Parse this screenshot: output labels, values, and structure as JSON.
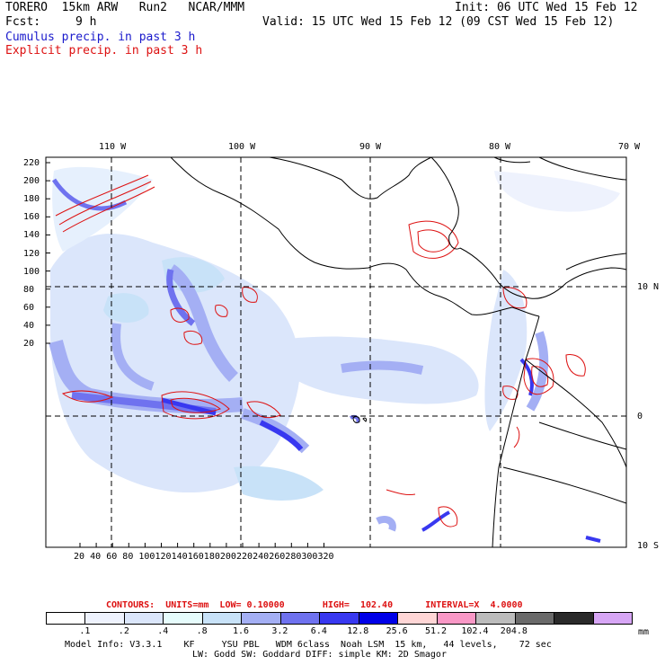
{
  "header": {
    "model_line": "TORERO  15km ARW   Run2   NCAR/MMM",
    "init_line": "Init: 06 UTC Wed 15 Feb 12",
    "fcst_label": "Fcst:",
    "fcst_value": "9 h",
    "valid_line": "Valid: 15 UTC Wed 15 Feb 12 (09 CST Wed 15 Feb 12)",
    "field_cumulus": "Cumulus precip. in past 3 h",
    "field_explicit": "Explicit precip. in past 3 h"
  },
  "map": {
    "lon_labels": [
      "110 W",
      "100 W",
      "90 W",
      "80 W",
      "70 W"
    ],
    "lat_labels": [
      "10 N",
      "0",
      "10 S"
    ],
    "y_ticks": [
      "220",
      "200",
      "180",
      "160",
      "140",
      "120",
      "100",
      "80",
      "60",
      "40",
      "20"
    ],
    "x_ticks": [
      "20",
      "40",
      "60",
      "80",
      "100",
      "120",
      "140",
      "160",
      "180",
      "200",
      "220",
      "240",
      "260",
      "280",
      "300",
      "320"
    ],
    "colors": {
      "explicit_contour": "#dd1111",
      "coast": "#000000"
    }
  },
  "contours_line": {
    "label": "CONTOURS:  UNITS=mm  LOW= 0.10000       HIGH=  102.40      INTERVAL=X  4.0000"
  },
  "colorbar": {
    "tick_labels": [
      ".1",
      ".2",
      ".4",
      ".8",
      "1.6",
      "3.2",
      "6.4",
      "12.8",
      "25.6",
      "51.2",
      "102.4",
      "204.8"
    ],
    "units": "mm",
    "colors": [
      "#ffffff",
      "#eef2fd",
      "#dbe6fb",
      "#e6fcfc",
      "#c8e2f8",
      "#a4aff4",
      "#6f72ef",
      "#3838f0",
      "#0000e8",
      "#ffd6d6",
      "#f998c6",
      "#bcbcbc",
      "#6a6a6a",
      "#2a2a2a",
      "#d7a6f5"
    ]
  },
  "footer": {
    "line1": "Model Info: V3.3.1    KF     YSU PBL   WDM 6class  Noah LSM  15 km,   44 levels,    72 sec",
    "line2": "LW: Godd SW: Goddard DIFF: simple KM: 2D Smagor"
  }
}
